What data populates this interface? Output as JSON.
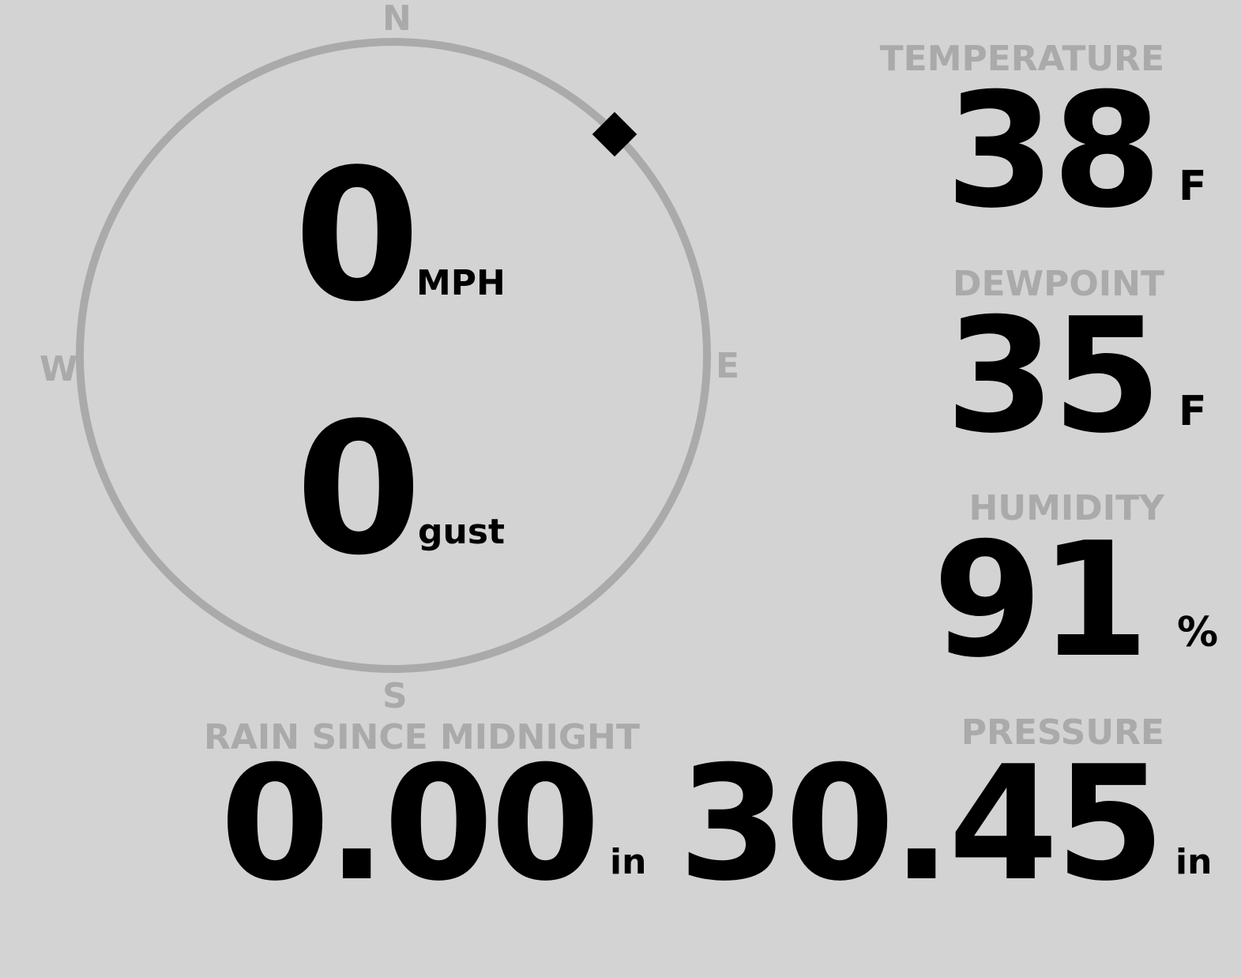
{
  "wind": {
    "speed": "0",
    "speed_unit": "MPH",
    "gust": "0",
    "gust_unit": "gust",
    "direction_degrees": 45,
    "cardinals": {
      "n": "N",
      "e": "E",
      "s": "S",
      "w": "W"
    }
  },
  "temperature": {
    "label": "TEMPERATURE",
    "value": "38",
    "unit": "F"
  },
  "dewpoint": {
    "label": "DEWPOINT",
    "value": "35",
    "unit": "F"
  },
  "humidity": {
    "label": "HUMIDITY",
    "value": "91",
    "unit": "%"
  },
  "rain": {
    "label": "RAIN SINCE MIDNIGHT",
    "value": "0.00",
    "unit": "in"
  },
  "pressure": {
    "label": "PRESSURE",
    "value": "30.45",
    "unit": "in"
  },
  "colors": {
    "background": "#d3d3d3",
    "label": "#aaaaaa",
    "value": "#000000",
    "compass_ring": "#aaaaaa"
  }
}
